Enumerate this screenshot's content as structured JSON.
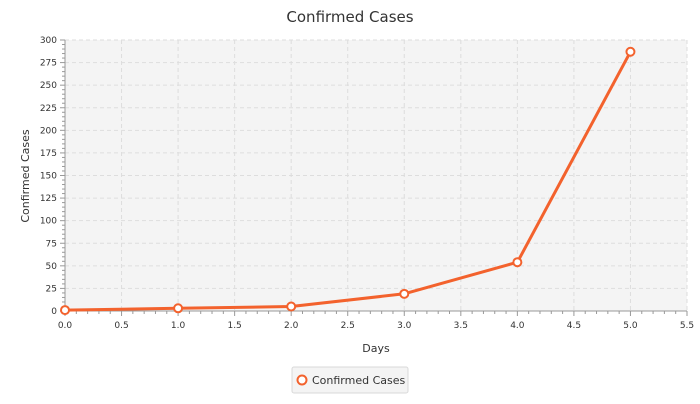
{
  "chart_data": {
    "type": "line",
    "title": "Confirmed Cases",
    "xlabel": "Days",
    "ylabel": "Confirmed Cases",
    "xlim": [
      0,
      5.5
    ],
    "ylim": [
      0,
      300
    ],
    "x_ticks": [
      "0.0",
      "0.5",
      "1.0",
      "1.5",
      "2.0",
      "2.5",
      "3.0",
      "3.5",
      "4.0",
      "4.5",
      "5.0",
      "5.5"
    ],
    "y_ticks": [
      "0",
      "25",
      "50",
      "75",
      "100",
      "125",
      "150",
      "175",
      "200",
      "225",
      "250",
      "275",
      "300"
    ],
    "grid": true,
    "legend_position": "bottom",
    "series": [
      {
        "name": "Confirmed Cases",
        "color": "#f3622d",
        "x": [
          0,
          1,
          2,
          3,
          4,
          5
        ],
        "y": [
          1,
          3,
          5,
          19,
          54,
          287
        ]
      }
    ]
  }
}
